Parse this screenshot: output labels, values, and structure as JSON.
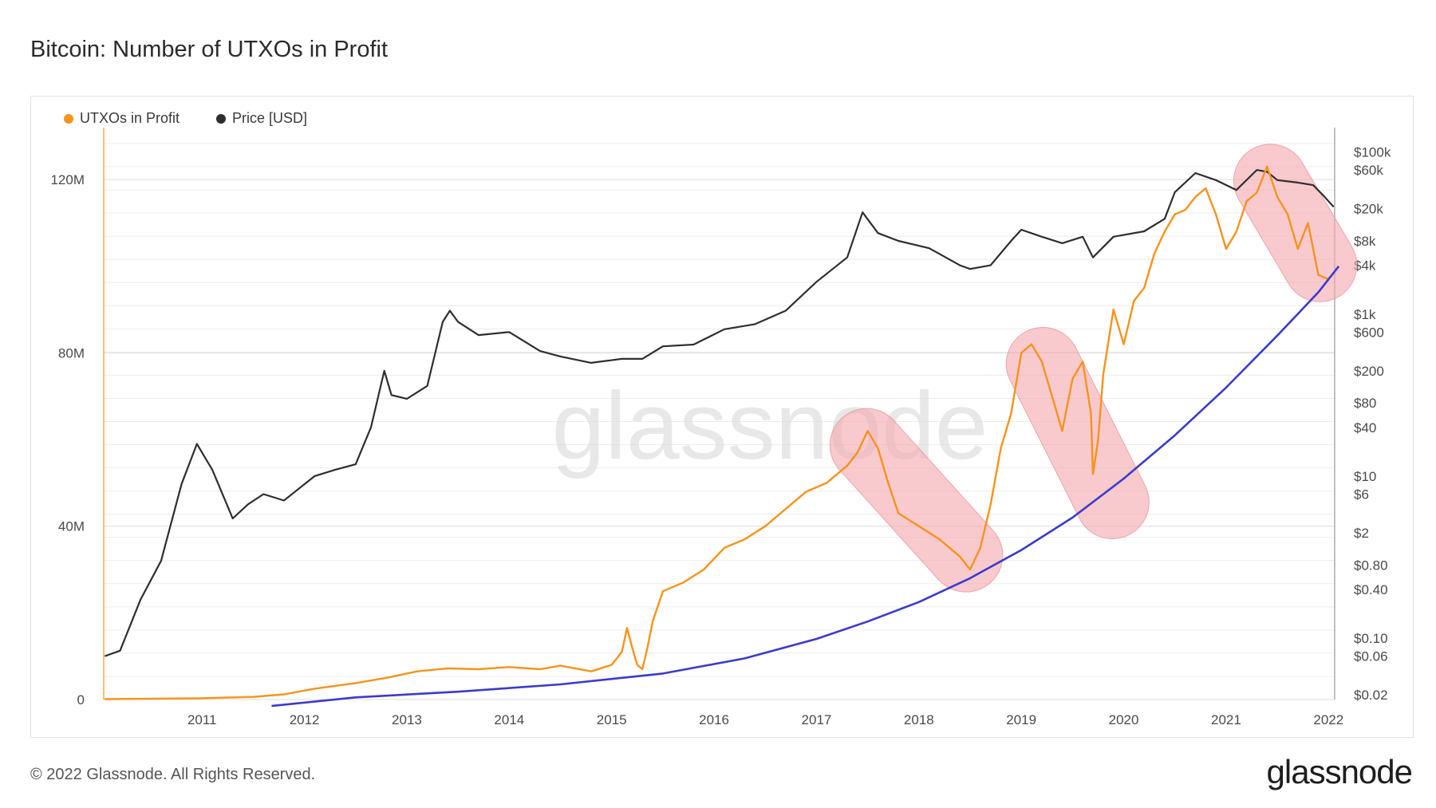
{
  "header": {
    "title": "Bitcoin: Number of UTXOs in Profit"
  },
  "footer": {
    "copyright": "© 2022 Glassnode. All Rights Reserved.",
    "brand": "glassnode"
  },
  "colors": {
    "utxo": "#f7931a",
    "price": "#2e2e2e",
    "trend": "#3b3bcc",
    "highlight": "#f4a6ae",
    "grid": "#ececec"
  },
  "chart_data": {
    "type": "line",
    "title": "Bitcoin: Number of UTXOs in Profit",
    "watermark": "glassnode",
    "legend": {
      "position": "top-left",
      "items": [
        "UTXOs in Profit",
        "Price [USD]"
      ]
    },
    "x_ticks": [
      "2011",
      "2012",
      "2013",
      "2014",
      "2015",
      "2016",
      "2017",
      "2018",
      "2019",
      "2020",
      "2021",
      "2022"
    ],
    "xlim": [
      2010.54,
      2022.56
    ],
    "y_left": {
      "ticks": [
        "0",
        "40M",
        "80M",
        "120M"
      ],
      "values": [
        0,
        40,
        80,
        120
      ],
      "unit": "M",
      "lim": [
        0,
        132
      ]
    },
    "y_right": {
      "scale": "log",
      "ticks": [
        "$100k",
        "$60k",
        "$20k",
        "$8k",
        "$4k",
        "$1k",
        "$600",
        "$200",
        "$80",
        "$40",
        "$10",
        "$6",
        "$2",
        "$0.80",
        "$0.40",
        "$0.10",
        "$0.06",
        "$0.02"
      ],
      "values": [
        100000,
        60000,
        20000,
        8000,
        4000,
        1000,
        600,
        200,
        80,
        40,
        10,
        6,
        2,
        0.8,
        0.4,
        0.1,
        0.06,
        0.02
      ]
    },
    "grid": true,
    "series": [
      {
        "name": "UTXOs in Profit",
        "axis": "left",
        "x": [
          2010.55,
          2011.0,
          2011.5,
          2012.0,
          2012.3,
          2012.6,
          2013.0,
          2013.3,
          2013.6,
          2013.9,
          2014.2,
          2014.5,
          2014.8,
          2015.0,
          2015.3,
          2015.5,
          2015.6,
          2015.65,
          2015.7,
          2015.75,
          2015.8,
          2015.85,
          2015.9,
          2016.0,
          2016.2,
          2016.4,
          2016.6,
          2016.8,
          2017.0,
          2017.2,
          2017.4,
          2017.6,
          2017.8,
          2017.9,
          2018.0,
          2018.1,
          2018.2,
          2018.3,
          2018.5,
          2018.7,
          2018.9,
          2019.0,
          2019.1,
          2019.2,
          2019.3,
          2019.4,
          2019.5,
          2019.6,
          2019.7,
          2019.8,
          2019.9,
          2020.0,
          2020.1,
          2020.18,
          2020.2,
          2020.25,
          2020.3,
          2020.4,
          2020.5,
          2020.6,
          2020.7,
          2020.8,
          2020.9,
          2021.0,
          2021.1,
          2021.2,
          2021.3,
          2021.4,
          2021.5,
          2021.6,
          2021.7,
          2021.8,
          2021.9,
          2022.0,
          2022.1,
          2022.2,
          2022.3,
          2022.4,
          2022.5
        ],
        "values": [
          0.1,
          0.2,
          0.3,
          0.6,
          1.2,
          2.5,
          3.8,
          5.0,
          6.5,
          7.2,
          7.0,
          7.5,
          7.0,
          7.8,
          6.5,
          8.0,
          11.0,
          16.5,
          12.0,
          8.0,
          7.0,
          12.0,
          18.0,
          25.0,
          27.0,
          30.0,
          35.0,
          37.0,
          40.0,
          44.0,
          48.0,
          50.0,
          54.0,
          57.0,
          62.0,
          58.0,
          50.0,
          43.0,
          40.0,
          37.0,
          33.0,
          30.0,
          35.0,
          45.0,
          58.0,
          66.0,
          80.0,
          82.0,
          78.0,
          70.0,
          62.0,
          74.0,
          78.0,
          66.0,
          52.0,
          60.0,
          75.0,
          90.0,
          82.0,
          92.0,
          95.0,
          103.0,
          108.0,
          112.0,
          113.0,
          116.0,
          118.0,
          112.0,
          104.0,
          108.0,
          115.0,
          117.0,
          123.0,
          116.0,
          112.0,
          104.0,
          110.0,
          98.0,
          97.0
        ]
      },
      {
        "name": "Price [USD]",
        "axis": "right",
        "x": [
          2010.55,
          2010.7,
          2010.9,
          2011.1,
          2011.3,
          2011.45,
          2011.6,
          2011.8,
          2011.95,
          2012.1,
          2012.3,
          2012.6,
          2012.8,
          2013.0,
          2013.15,
          2013.28,
          2013.35,
          2013.5,
          2013.7,
          2013.85,
          2013.92,
          2014.0,
          2014.2,
          2014.5,
          2014.8,
          2015.0,
          2015.3,
          2015.6,
          2015.8,
          2016.0,
          2016.3,
          2016.6,
          2016.9,
          2017.2,
          2017.5,
          2017.8,
          2017.95,
          2018.1,
          2018.3,
          2018.6,
          2018.9,
          2019.0,
          2019.2,
          2019.4,
          2019.5,
          2019.7,
          2019.9,
          2020.1,
          2020.2,
          2020.4,
          2020.7,
          2020.9,
          2021.0,
          2021.2,
          2021.4,
          2021.6,
          2021.8,
          2021.9,
          2022.0,
          2022.2,
          2022.35,
          2022.45,
          2022.55
        ],
        "values": [
          0.06,
          0.07,
          0.3,
          0.9,
          8.0,
          25.0,
          12.0,
          3.0,
          4.5,
          6.0,
          5.0,
          10.0,
          12.0,
          14.0,
          40.0,
          200.0,
          100.0,
          90.0,
          130.0,
          800.0,
          1100.0,
          800.0,
          550.0,
          600.0,
          350.0,
          300.0,
          250.0,
          280.0,
          280.0,
          400.0,
          420.0,
          650.0,
          750.0,
          1100.0,
          2500.0,
          5000.0,
          18000.0,
          10000.0,
          8000.0,
          6500.0,
          4000.0,
          3600.0,
          4000.0,
          8000.0,
          11000.0,
          9000.0,
          7500.0,
          9000.0,
          5000.0,
          9000.0,
          10500.0,
          15000.0,
          32000.0,
          55000.0,
          45000.0,
          34000.0,
          60000.0,
          57000.0,
          45000.0,
          42000.0,
          39000.0,
          29000.0,
          21000.0
        ]
      },
      {
        "name": "",
        "axis": "left",
        "style": "trend-curve",
        "x": [
          2012.18,
          2013.0,
          2014.0,
          2015.0,
          2016.0,
          2016.8,
          2017.5,
          2018.0,
          2018.5,
          2019.0,
          2019.5,
          2020.0,
          2020.5,
          2021.0,
          2021.5,
          2022.0,
          2022.4,
          2022.6
        ],
        "values": [
          -1.5,
          0.5,
          1.8,
          3.5,
          6.0,
          9.5,
          14.0,
          18.0,
          22.5,
          28.0,
          34.5,
          42.0,
          51.0,
          61.0,
          72.0,
          84.0,
          94.0,
          100.0
        ]
      }
    ],
    "highlight_regions": [
      {
        "x": [
          2017.75,
          2019.2
        ],
        "y": [
          27.0,
          65.0
        ]
      },
      {
        "x": [
          2019.55,
          2020.55
        ],
        "y": [
          38.0,
          85.0
        ]
      },
      {
        "x": [
          2021.75,
          2022.6
        ],
        "y": [
          93.0,
          127.0
        ]
      }
    ]
  }
}
